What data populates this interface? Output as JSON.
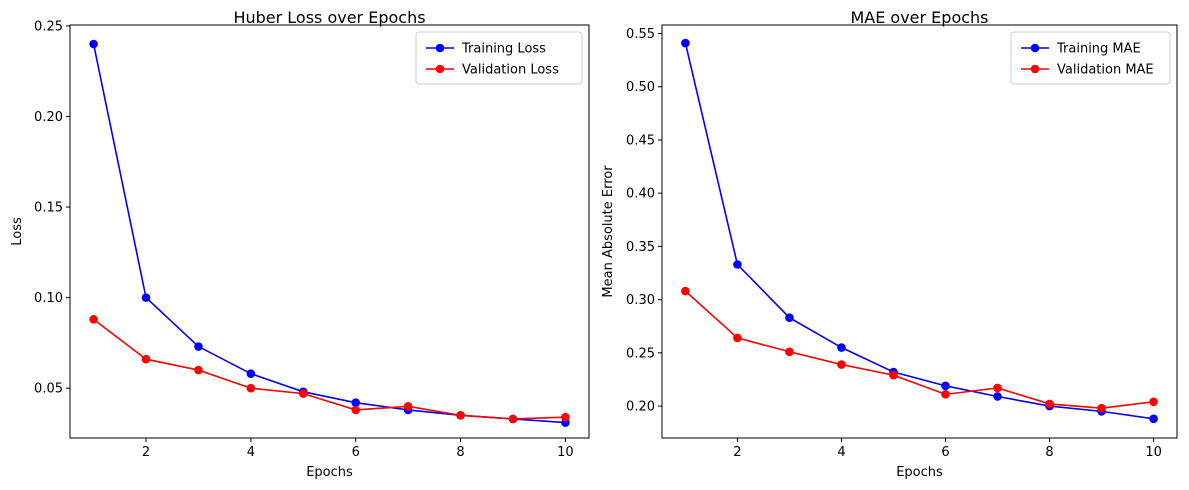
{
  "chart_data": [
    {
      "type": "line",
      "title": "Huber Loss over Epochs",
      "xlabel": "Epochs",
      "ylabel": "Loss",
      "xlim": [
        0.55,
        10.45
      ],
      "ylim": [
        0.0225,
        0.2505
      ],
      "xticks": [
        2,
        4,
        6,
        8,
        10
      ],
      "xtick_labels": [
        "2",
        "4",
        "6",
        "8",
        "10"
      ],
      "yticks": [
        0.05,
        0.1,
        0.15,
        0.2,
        0.25
      ],
      "ytick_labels": [
        "0.05",
        "0.10",
        "0.15",
        "0.20",
        "0.25"
      ],
      "grid": false,
      "legend_position": "top-right",
      "x": [
        1,
        2,
        3,
        4,
        5,
        6,
        7,
        8,
        9,
        10
      ],
      "series": [
        {
          "name": "Training Loss",
          "color": "#0000ff",
          "marker": "circle",
          "values": [
            0.24,
            0.1,
            0.073,
            0.058,
            0.048,
            0.042,
            0.038,
            0.035,
            0.033,
            0.031
          ]
        },
        {
          "name": "Validation Loss",
          "color": "#ff0000",
          "marker": "circle",
          "values": [
            0.088,
            0.066,
            0.06,
            0.05,
            0.047,
            0.038,
            0.04,
            0.035,
            0.033,
            0.034
          ]
        }
      ]
    },
    {
      "type": "line",
      "title": "MAE over Epochs",
      "xlabel": "Epochs",
      "ylabel": "Mean Absolute Error",
      "xlim": [
        0.55,
        10.45
      ],
      "ylim": [
        0.17,
        0.558
      ],
      "xticks": [
        2,
        4,
        6,
        8,
        10
      ],
      "xtick_labels": [
        "2",
        "4",
        "6",
        "8",
        "10"
      ],
      "yticks": [
        0.2,
        0.25,
        0.3,
        0.35,
        0.4,
        0.45,
        0.5,
        0.55
      ],
      "ytick_labels": [
        "0.20",
        "0.25",
        "0.30",
        "0.35",
        "0.40",
        "0.45",
        "0.50",
        "0.55"
      ],
      "grid": false,
      "legend_position": "top-right",
      "x": [
        1,
        2,
        3,
        4,
        5,
        6,
        7,
        8,
        9,
        10
      ],
      "series": [
        {
          "name": "Training MAE",
          "color": "#0000ff",
          "marker": "circle",
          "values": [
            0.541,
            0.333,
            0.283,
            0.255,
            0.232,
            0.219,
            0.209,
            0.2,
            0.195,
            0.188
          ]
        },
        {
          "name": "Validation MAE",
          "color": "#ff0000",
          "marker": "circle",
          "values": [
            0.308,
            0.264,
            0.251,
            0.239,
            0.229,
            0.211,
            0.217,
            0.202,
            0.198,
            0.204
          ]
        }
      ]
    }
  ]
}
